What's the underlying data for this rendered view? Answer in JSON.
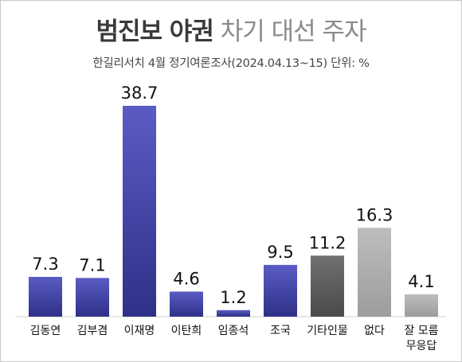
{
  "title_bold": "범진보 야권",
  "title_light": "차기 대선 주자",
  "subtitle": "한길리서치 4월 정기여론조사(2024.04.13~15) 단위: %",
  "chart_data": {
    "type": "bar",
    "title": "범진보 야권 차기 대선 주자",
    "subtitle": "한길리서치 4월 정기여론조사(2024.04.13~15) 단위: %",
    "categories": [
      "김동연",
      "김부겸",
      "이재명",
      "이탄희",
      "임종석",
      "조국",
      "기타인물",
      "없다",
      "잘 모름\n무응답"
    ],
    "values": [
      7.3,
      7.1,
      38.7,
      4.6,
      1.2,
      9.5,
      11.2,
      16.3,
      4.1
    ],
    "value_labels": [
      "7.3",
      "7.1",
      "38.7",
      "4.6",
      "1.2",
      "9.5",
      "11.2",
      "16.3",
      "4.1"
    ],
    "unit": "%",
    "colors": [
      "#3d3f9e",
      "#3d3f9e",
      "#3d3f9e",
      "#3d3f9e",
      "#3d3f9e",
      "#3d3f9e",
      "#5e5e5e",
      "#a9a9a9",
      "#a9a9a9"
    ],
    "grid": false,
    "legend": "none"
  }
}
